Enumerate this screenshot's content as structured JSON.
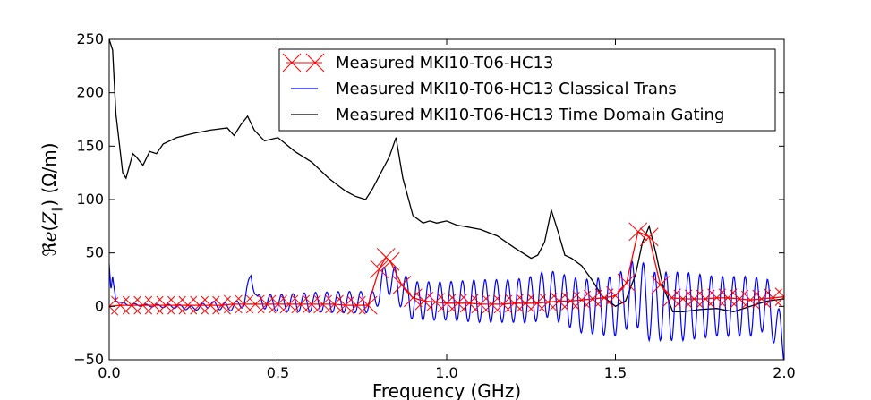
{
  "chart_data": {
    "type": "line",
    "title": "",
    "xlabel": "Frequency (GHz)",
    "ylabel": "ℜe(Z∥) (Ω/m)",
    "xlim": [
      0,
      2.0
    ],
    "ylim": [
      -50,
      250
    ],
    "xticks": [
      "0.0",
      "0.5",
      "1.0",
      "1.5",
      "2.0"
    ],
    "yticks": [
      "−50",
      "0",
      "50",
      "100",
      "150",
      "200",
      "250"
    ],
    "xtick_values": [
      0,
      0.5,
      1.0,
      1.5,
      2.0
    ],
    "ytick_values": [
      -50,
      0,
      50,
      100,
      150,
      200,
      250
    ],
    "grid": false,
    "legend_position": "top-right",
    "series": [
      {
        "name": "Measured MKI10-T06-HC13",
        "color": "#ff0000",
        "marker": "x",
        "x": [
          0.0,
          0.033,
          0.067,
          0.1,
          0.133,
          0.167,
          0.2,
          0.233,
          0.267,
          0.3,
          0.333,
          0.367,
          0.4,
          0.433,
          0.467,
          0.5,
          0.533,
          0.567,
          0.6,
          0.633,
          0.667,
          0.7,
          0.733,
          0.767,
          0.8,
          0.82,
          0.833,
          0.867,
          0.9,
          0.933,
          0.967,
          1.0,
          1.033,
          1.067,
          1.1,
          1.133,
          1.167,
          1.2,
          1.233,
          1.267,
          1.3,
          1.333,
          1.367,
          1.4,
          1.433,
          1.467,
          1.5,
          1.533,
          1.567,
          1.6,
          1.633,
          1.667,
          1.7,
          1.733,
          1.767,
          1.8,
          1.833,
          1.867,
          1.9,
          1.933,
          1.967,
          2.0
        ],
        "y": [
          0,
          1,
          1,
          1,
          1,
          1,
          1,
          1,
          1,
          1,
          1,
          2,
          2,
          2,
          2,
          2,
          2,
          2,
          2,
          2,
          2,
          1,
          1,
          1,
          35,
          46,
          42,
          20,
          8,
          5,
          4,
          3,
          3,
          3,
          2,
          2,
          2,
          3,
          3,
          3,
          4,
          5,
          5,
          6,
          7,
          8,
          10,
          22,
          70,
          65,
          20,
          8,
          7,
          7,
          7,
          8,
          8,
          7,
          6,
          7,
          8,
          9
        ]
      },
      {
        "name": "Measured MKI10-T06-HC13 Classical Trans",
        "color": "#0000ff",
        "marker": "none",
        "x": [
          0.0,
          0.005,
          0.01,
          0.02,
          0.05,
          0.1,
          0.2,
          0.25,
          0.3,
          0.35,
          0.4,
          0.42,
          0.44,
          0.5,
          0.6,
          0.7,
          0.78,
          0.8,
          0.82,
          0.85,
          0.9,
          1.0,
          1.1,
          1.2,
          1.25,
          1.3,
          1.4,
          1.5,
          1.55,
          1.58,
          1.6,
          1.7,
          1.8,
          1.9,
          1.95,
          2.0
        ],
        "y": [
          40,
          15,
          28,
          5,
          2,
          1,
          0,
          -2,
          2,
          -1,
          3,
          30,
          5,
          3,
          4,
          4,
          4,
          14,
          28,
          20,
          5,
          5,
          5,
          5,
          6,
          12,
          0,
          0,
          12,
          10,
          0,
          0,
          0,
          0,
          2,
          -35
        ],
        "osc_amplitude": [
          0,
          0,
          0,
          0,
          1,
          1,
          2,
          2,
          3,
          4,
          4,
          5,
          6,
          8,
          9,
          10,
          10,
          12,
          14,
          16,
          18,
          18,
          20,
          20,
          22,
          22,
          25,
          28,
          30,
          32,
          32,
          32,
          28,
          28,
          24,
          20
        ]
      },
      {
        "name": "Measured MKI10-T06-HC13 Time Domain Gating",
        "color": "#000000",
        "marker": "none",
        "x": [
          0.0,
          0.01,
          0.02,
          0.04,
          0.05,
          0.07,
          0.08,
          0.1,
          0.12,
          0.14,
          0.16,
          0.2,
          0.25,
          0.3,
          0.35,
          0.37,
          0.39,
          0.41,
          0.43,
          0.46,
          0.5,
          0.55,
          0.6,
          0.65,
          0.7,
          0.73,
          0.76,
          0.78,
          0.8,
          0.83,
          0.85,
          0.87,
          0.9,
          0.93,
          0.95,
          0.97,
          1.0,
          1.03,
          1.05,
          1.1,
          1.15,
          1.2,
          1.25,
          1.27,
          1.29,
          1.31,
          1.33,
          1.35,
          1.37,
          1.4,
          1.43,
          1.46,
          1.5,
          1.53,
          1.56,
          1.58,
          1.6,
          1.62,
          1.64,
          1.67,
          1.7,
          1.75,
          1.8,
          1.85,
          1.9,
          1.95,
          2.0
        ],
        "y": [
          250,
          240,
          180,
          125,
          120,
          143,
          140,
          132,
          145,
          143,
          152,
          158,
          162,
          165,
          167,
          160,
          170,
          178,
          165,
          155,
          158,
          145,
          135,
          120,
          108,
          103,
          100,
          110,
          122,
          140,
          158,
          120,
          85,
          78,
          80,
          78,
          80,
          76,
          75,
          72,
          66,
          55,
          45,
          48,
          60,
          90,
          70,
          48,
          45,
          38,
          25,
          10,
          0,
          5,
          30,
          60,
          75,
          50,
          20,
          -5,
          -5,
          -3,
          -2,
          -5,
          0,
          5,
          7
        ]
      }
    ]
  },
  "legend": {
    "entries": [
      "Measured MKI10-T06-HC13",
      "Measured MKI10-T06-HC13 Classical Trans",
      "Measured MKI10-T06-HC13 Time Domain Gating"
    ]
  },
  "axes": {
    "xlabel": "Frequency (GHz)"
  }
}
